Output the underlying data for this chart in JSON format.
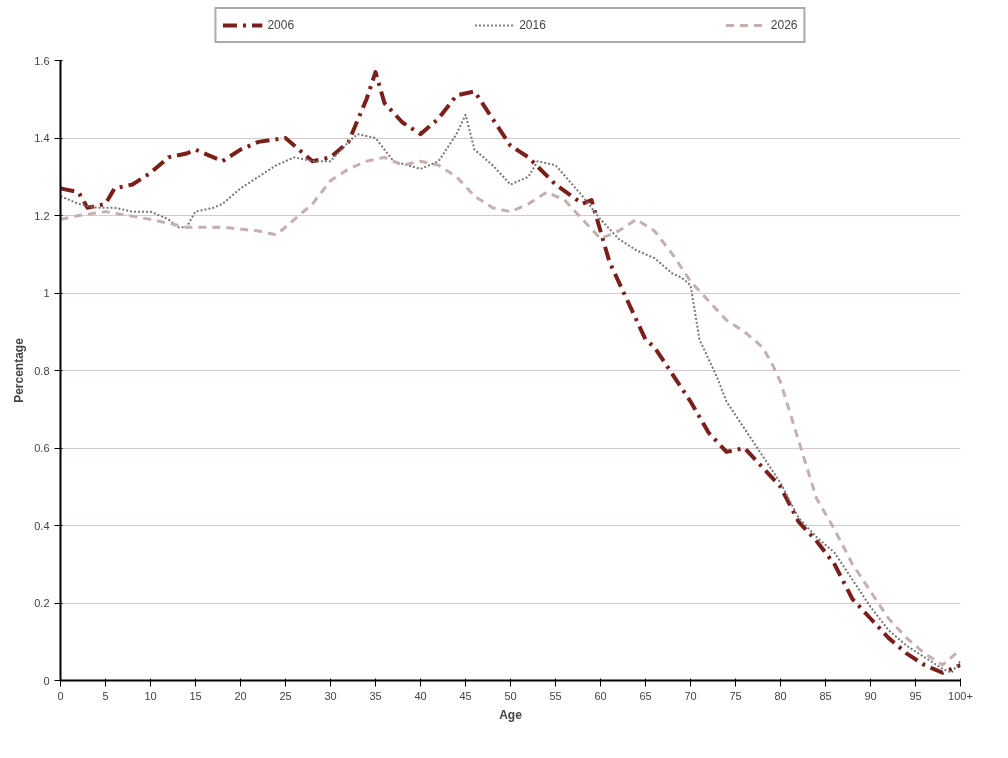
{
  "chart_data": {
    "type": "line",
    "xlabel": "Age",
    "ylabel": "Percentage",
    "xlim": [
      0,
      100
    ],
    "ylim": [
      0,
      1.6
    ],
    "xticks": [
      0,
      5,
      10,
      15,
      20,
      25,
      30,
      35,
      40,
      45,
      50,
      55,
      60,
      65,
      70,
      75,
      80,
      85,
      90,
      95,
      {
        "value": 100,
        "label": "100+"
      }
    ],
    "yticks": [
      0,
      0.2,
      0.4,
      0.6,
      0.8,
      1,
      1.2,
      1.4,
      1.6
    ],
    "grid": "y",
    "legend": "top",
    "marker": "none",
    "series": [
      {
        "name": "2006",
        "color": "#7a1f1a",
        "line_style": "dashdot",
        "x": [
          0,
          2,
          3,
          5,
          6,
          8,
          10,
          12,
          14,
          15,
          18,
          20,
          22,
          25,
          26,
          28,
          30,
          32,
          34,
          35,
          36,
          38,
          40,
          42,
          44,
          46,
          48,
          50,
          52,
          55,
          58,
          59,
          60,
          61,
          63,
          65,
          66,
          68,
          70,
          72,
          74,
          76,
          78,
          80,
          82,
          84,
          86,
          88,
          90,
          92,
          94,
          96,
          98,
          100
        ],
        "values": [
          1.27,
          1.26,
          1.22,
          1.23,
          1.27,
          1.28,
          1.31,
          1.35,
          1.36,
          1.37,
          1.34,
          1.37,
          1.39,
          1.4,
          1.38,
          1.34,
          1.35,
          1.39,
          1.5,
          1.57,
          1.49,
          1.44,
          1.41,
          1.45,
          1.51,
          1.52,
          1.45,
          1.38,
          1.35,
          1.28,
          1.23,
          1.24,
          1.16,
          1.08,
          0.98,
          0.88,
          0.86,
          0.79,
          0.72,
          0.64,
          0.59,
          0.6,
          0.55,
          0.5,
          0.41,
          0.36,
          0.3,
          0.21,
          0.16,
          0.11,
          0.07,
          0.04,
          0.02,
          0.04
        ]
      },
      {
        "name": "2016",
        "color": "#777777",
        "line_style": "dotted",
        "x": [
          0,
          2,
          4,
          6,
          8,
          10,
          12,
          13,
          14,
          15,
          17,
          18,
          20,
          22,
          24,
          26,
          28,
          30,
          32,
          33,
          35,
          37,
          40,
          42,
          44,
          45,
          46,
          48,
          50,
          52,
          53,
          55,
          58,
          60,
          62,
          64,
          66,
          68,
          69,
          70,
          71,
          73,
          74,
          76,
          78,
          80,
          82,
          84,
          86,
          88,
          90,
          92,
          94,
          96,
          98,
          99,
          100
        ],
        "values": [
          1.25,
          1.23,
          1.22,
          1.22,
          1.21,
          1.21,
          1.19,
          1.17,
          1.17,
          1.21,
          1.22,
          1.23,
          1.27,
          1.3,
          1.33,
          1.35,
          1.34,
          1.34,
          1.39,
          1.41,
          1.4,
          1.34,
          1.32,
          1.34,
          1.41,
          1.46,
          1.37,
          1.33,
          1.28,
          1.3,
          1.34,
          1.33,
          1.25,
          1.19,
          1.14,
          1.11,
          1.09,
          1.05,
          1.04,
          1.02,
          0.88,
          0.78,
          0.72,
          0.65,
          0.58,
          0.51,
          0.42,
          0.37,
          0.33,
          0.26,
          0.19,
          0.13,
          0.09,
          0.06,
          0.03,
          0.02,
          0.05
        ]
      },
      {
        "name": "2026",
        "color": "#c4b0b0",
        "line_style": "dashed",
        "x": [
          0,
          2,
          5,
          10,
          14,
          18,
          22,
          24,
          26,
          28,
          30,
          32,
          34,
          36,
          38,
          40,
          42,
          44,
          46,
          48,
          50,
          52,
          54,
          56,
          58,
          60,
          62,
          64,
          66,
          68,
          70,
          72,
          74,
          76,
          78,
          79,
          80,
          82,
          84,
          86,
          88,
          90,
          92,
          94,
          96,
          98,
          100
        ],
        "values": [
          1.19,
          1.2,
          1.21,
          1.19,
          1.17,
          1.17,
          1.16,
          1.15,
          1.19,
          1.23,
          1.29,
          1.32,
          1.34,
          1.35,
          1.33,
          1.34,
          1.33,
          1.3,
          1.25,
          1.22,
          1.21,
          1.23,
          1.26,
          1.24,
          1.19,
          1.14,
          1.16,
          1.19,
          1.16,
          1.1,
          1.03,
          0.98,
          0.93,
          0.9,
          0.86,
          0.82,
          0.77,
          0.62,
          0.47,
          0.39,
          0.3,
          0.23,
          0.16,
          0.11,
          0.07,
          0.04,
          0.08
        ]
      }
    ]
  }
}
